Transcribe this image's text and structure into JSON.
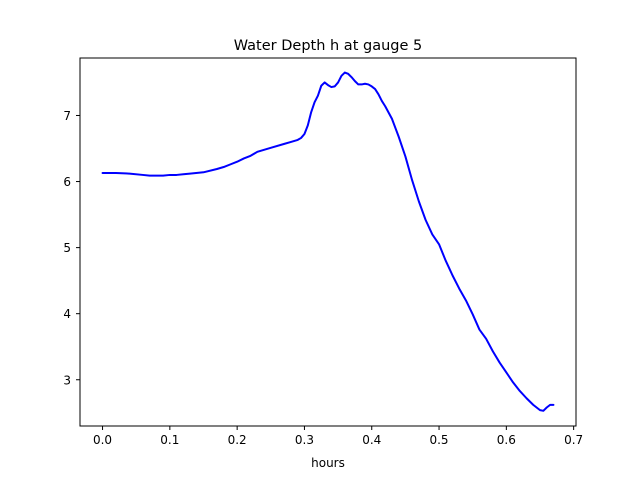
{
  "chart_data": {
    "type": "line",
    "title": "Water Depth h at gauge 5",
    "xlabel": "hours",
    "ylabel": "",
    "xlim": [
      -0.0335,
      0.7035
    ],
    "ylim": [
      2.3,
      7.87
    ],
    "xticks": [
      0.0,
      0.1,
      0.2,
      0.3,
      0.4,
      0.5,
      0.6,
      0.7
    ],
    "xtick_labels": [
      "0.0",
      "0.1",
      "0.2",
      "0.3",
      "0.4",
      "0.5",
      "0.6",
      "0.7"
    ],
    "yticks": [
      3,
      4,
      5,
      6,
      7
    ],
    "ytick_labels": [
      "3",
      "4",
      "5",
      "6",
      "7"
    ],
    "grid": false,
    "legend": "none",
    "series": [
      {
        "color": "#0000ff",
        "x": [
          0.0,
          0.02,
          0.04,
          0.06,
          0.07,
          0.075,
          0.08,
          0.09,
          0.1,
          0.11,
          0.12,
          0.13,
          0.15,
          0.17,
          0.18,
          0.19,
          0.2,
          0.21,
          0.22,
          0.23,
          0.25,
          0.27,
          0.28,
          0.29,
          0.295,
          0.3,
          0.305,
          0.31,
          0.315,
          0.32,
          0.325,
          0.33,
          0.335,
          0.34,
          0.345,
          0.35,
          0.355,
          0.36,
          0.365,
          0.37,
          0.375,
          0.38,
          0.385,
          0.39,
          0.395,
          0.4,
          0.405,
          0.41,
          0.415,
          0.42,
          0.43,
          0.44,
          0.45,
          0.46,
          0.47,
          0.48,
          0.49,
          0.5,
          0.51,
          0.515,
          0.52,
          0.53,
          0.54,
          0.55,
          0.56,
          0.57,
          0.58,
          0.59,
          0.6,
          0.61,
          0.62,
          0.63,
          0.64,
          0.65,
          0.655,
          0.66,
          0.665,
          0.67
        ],
        "y": [
          6.13,
          6.13,
          6.12,
          6.1,
          6.09,
          6.09,
          6.09,
          6.09,
          6.1,
          6.1,
          6.11,
          6.12,
          6.14,
          6.19,
          6.22,
          6.26,
          6.3,
          6.35,
          6.39,
          6.45,
          6.51,
          6.57,
          6.6,
          6.63,
          6.66,
          6.72,
          6.85,
          7.05,
          7.2,
          7.3,
          7.45,
          7.5,
          7.46,
          7.43,
          7.44,
          7.5,
          7.6,
          7.65,
          7.63,
          7.58,
          7.52,
          7.47,
          7.47,
          7.48,
          7.47,
          7.44,
          7.4,
          7.32,
          7.22,
          7.14,
          6.95,
          6.68,
          6.38,
          6.02,
          5.7,
          5.42,
          5.2,
          5.05,
          4.8,
          4.69,
          4.58,
          4.38,
          4.2,
          3.99,
          3.76,
          3.62,
          3.43,
          3.26,
          3.11,
          2.96,
          2.83,
          2.72,
          2.62,
          2.54,
          2.53,
          2.58,
          2.62,
          2.62
        ]
      }
    ]
  }
}
